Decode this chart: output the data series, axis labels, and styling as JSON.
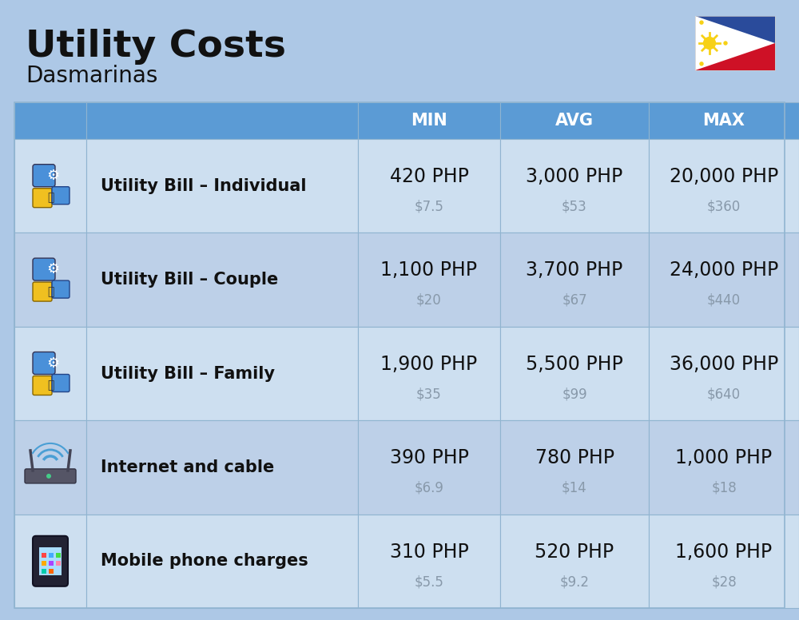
{
  "title": "Utility Costs",
  "subtitle": "Dasmarinas",
  "bg_color": "#adc8e6",
  "header_bg": "#5b9bd5",
  "header_text_color": "#ffffff",
  "row_bg_light": "#cddff0",
  "row_bg_dark": "#bdd0e8",
  "grid_line_color": "#90b4d0",
  "col_header": [
    "MIN",
    "AVG",
    "MAX"
  ],
  "rows": [
    {
      "label": "Utility Bill – Individual",
      "min_php": "420 PHP",
      "min_usd": "$7.5",
      "avg_php": "3,000 PHP",
      "avg_usd": "$53",
      "max_php": "20,000 PHP",
      "max_usd": "$360"
    },
    {
      "label": "Utility Bill – Couple",
      "min_php": "1,100 PHP",
      "min_usd": "$20",
      "avg_php": "3,700 PHP",
      "avg_usd": "$67",
      "max_php": "24,000 PHP",
      "max_usd": "$440"
    },
    {
      "label": "Utility Bill – Family",
      "min_php": "1,900 PHP",
      "min_usd": "$35",
      "avg_php": "5,500 PHP",
      "avg_usd": "$99",
      "max_php": "36,000 PHP",
      "max_usd": "$640"
    },
    {
      "label": "Internet and cable",
      "min_php": "390 PHP",
      "min_usd": "$6.9",
      "avg_php": "780 PHP",
      "avg_usd": "$14",
      "max_php": "1,000 PHP",
      "max_usd": "$18"
    },
    {
      "label": "Mobile phone charges",
      "min_php": "310 PHP",
      "min_usd": "$5.5",
      "avg_php": "520 PHP",
      "avg_usd": "$9.2",
      "max_php": "1,600 PHP",
      "max_usd": "$28"
    }
  ],
  "title_fontsize": 34,
  "subtitle_fontsize": 20,
  "header_fontsize": 15,
  "label_fontsize": 15,
  "value_php_fontsize": 17,
  "value_usd_fontsize": 12,
  "usd_color": "#8899aa"
}
